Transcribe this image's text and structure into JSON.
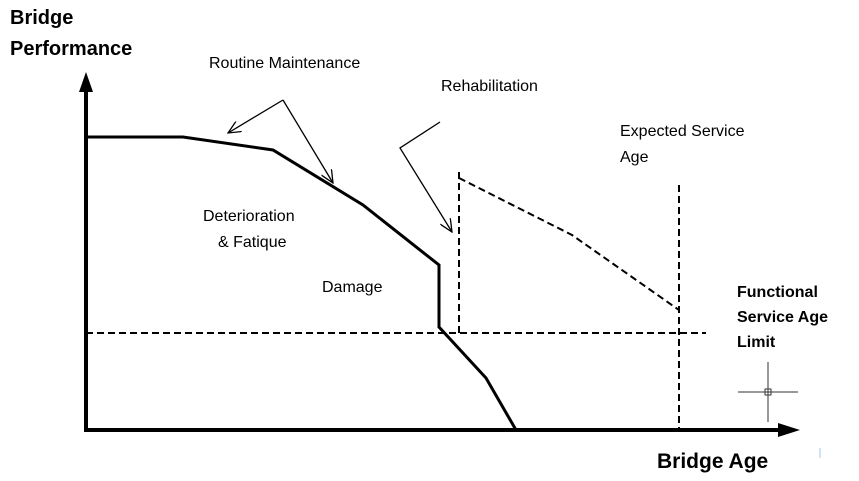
{
  "y_axis_title": [
    "Bridge",
    "Performance"
  ],
  "x_axis_title": "Bridge Age",
  "annotations": {
    "routine_maintenance": "Routine Maintenance",
    "rehabilitation": "Rehabilitation",
    "expected_service_age": [
      "Expected Service",
      "Age"
    ],
    "deterioration": [
      "Deterioration",
      "& Fatique"
    ],
    "damage": "Damage",
    "functional_limit": [
      "Functional",
      "Service Age",
      "Limit"
    ]
  }
}
